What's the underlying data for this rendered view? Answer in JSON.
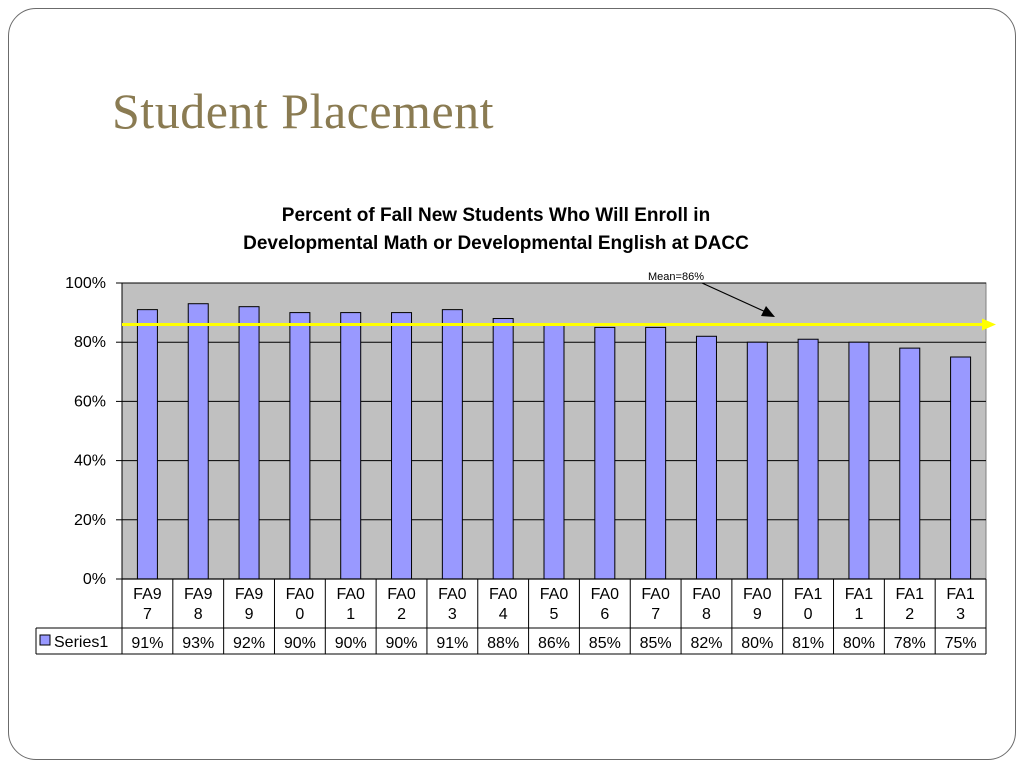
{
  "slide": {
    "title": "Student Placement"
  },
  "chart_data": {
    "type": "bar",
    "title_lines": [
      "Percent of Fall New Students Who Will Enroll in",
      "Developmental Math or Developmental English at DACC"
    ],
    "categories": [
      "FA97",
      "FA98",
      "FA99",
      "FA00",
      "FA01",
      "FA02",
      "FA03",
      "FA04",
      "FA05",
      "FA06",
      "FA07",
      "FA08",
      "FA09",
      "FA10",
      "FA11",
      "FA12",
      "FA13"
    ],
    "category_label_lines": [
      [
        "FA9",
        "7"
      ],
      [
        "FA9",
        "8"
      ],
      [
        "FA9",
        "9"
      ],
      [
        "FA0",
        "0"
      ],
      [
        "FA0",
        "1"
      ],
      [
        "FA0",
        "2"
      ],
      [
        "FA0",
        "3"
      ],
      [
        "FA0",
        "4"
      ],
      [
        "FA0",
        "5"
      ],
      [
        "FA0",
        "6"
      ],
      [
        "FA0",
        "7"
      ],
      [
        "FA0",
        "8"
      ],
      [
        "FA0",
        "9"
      ],
      [
        "FA1",
        "0"
      ],
      [
        "FA1",
        "1"
      ],
      [
        "FA1",
        "2"
      ],
      [
        "FA1",
        "3"
      ]
    ],
    "series": [
      {
        "name": "Series1",
        "values": [
          91,
          93,
          92,
          90,
          90,
          90,
          91,
          88,
          86,
          85,
          85,
          82,
          80,
          81,
          80,
          78,
          75
        ],
        "value_labels": [
          "91%",
          "93%",
          "92%",
          "90%",
          "90%",
          "90%",
          "91%",
          "88%",
          "86%",
          "85%",
          "85%",
          "82%",
          "80%",
          "81%",
          "80%",
          "78%",
          "75%"
        ],
        "color": "#9999ff"
      }
    ],
    "ylim": [
      0,
      100
    ],
    "yticks": [
      0,
      20,
      40,
      60,
      80,
      100
    ],
    "ytick_labels": [
      "0%",
      "20%",
      "40%",
      "60%",
      "80%",
      "100%"
    ],
    "grid": true,
    "plot_background": "#c0c0c0",
    "mean_line": {
      "value": 86,
      "label": "Mean=86%",
      "color": "#ffff00"
    },
    "legend_placement": "data-table-left"
  }
}
